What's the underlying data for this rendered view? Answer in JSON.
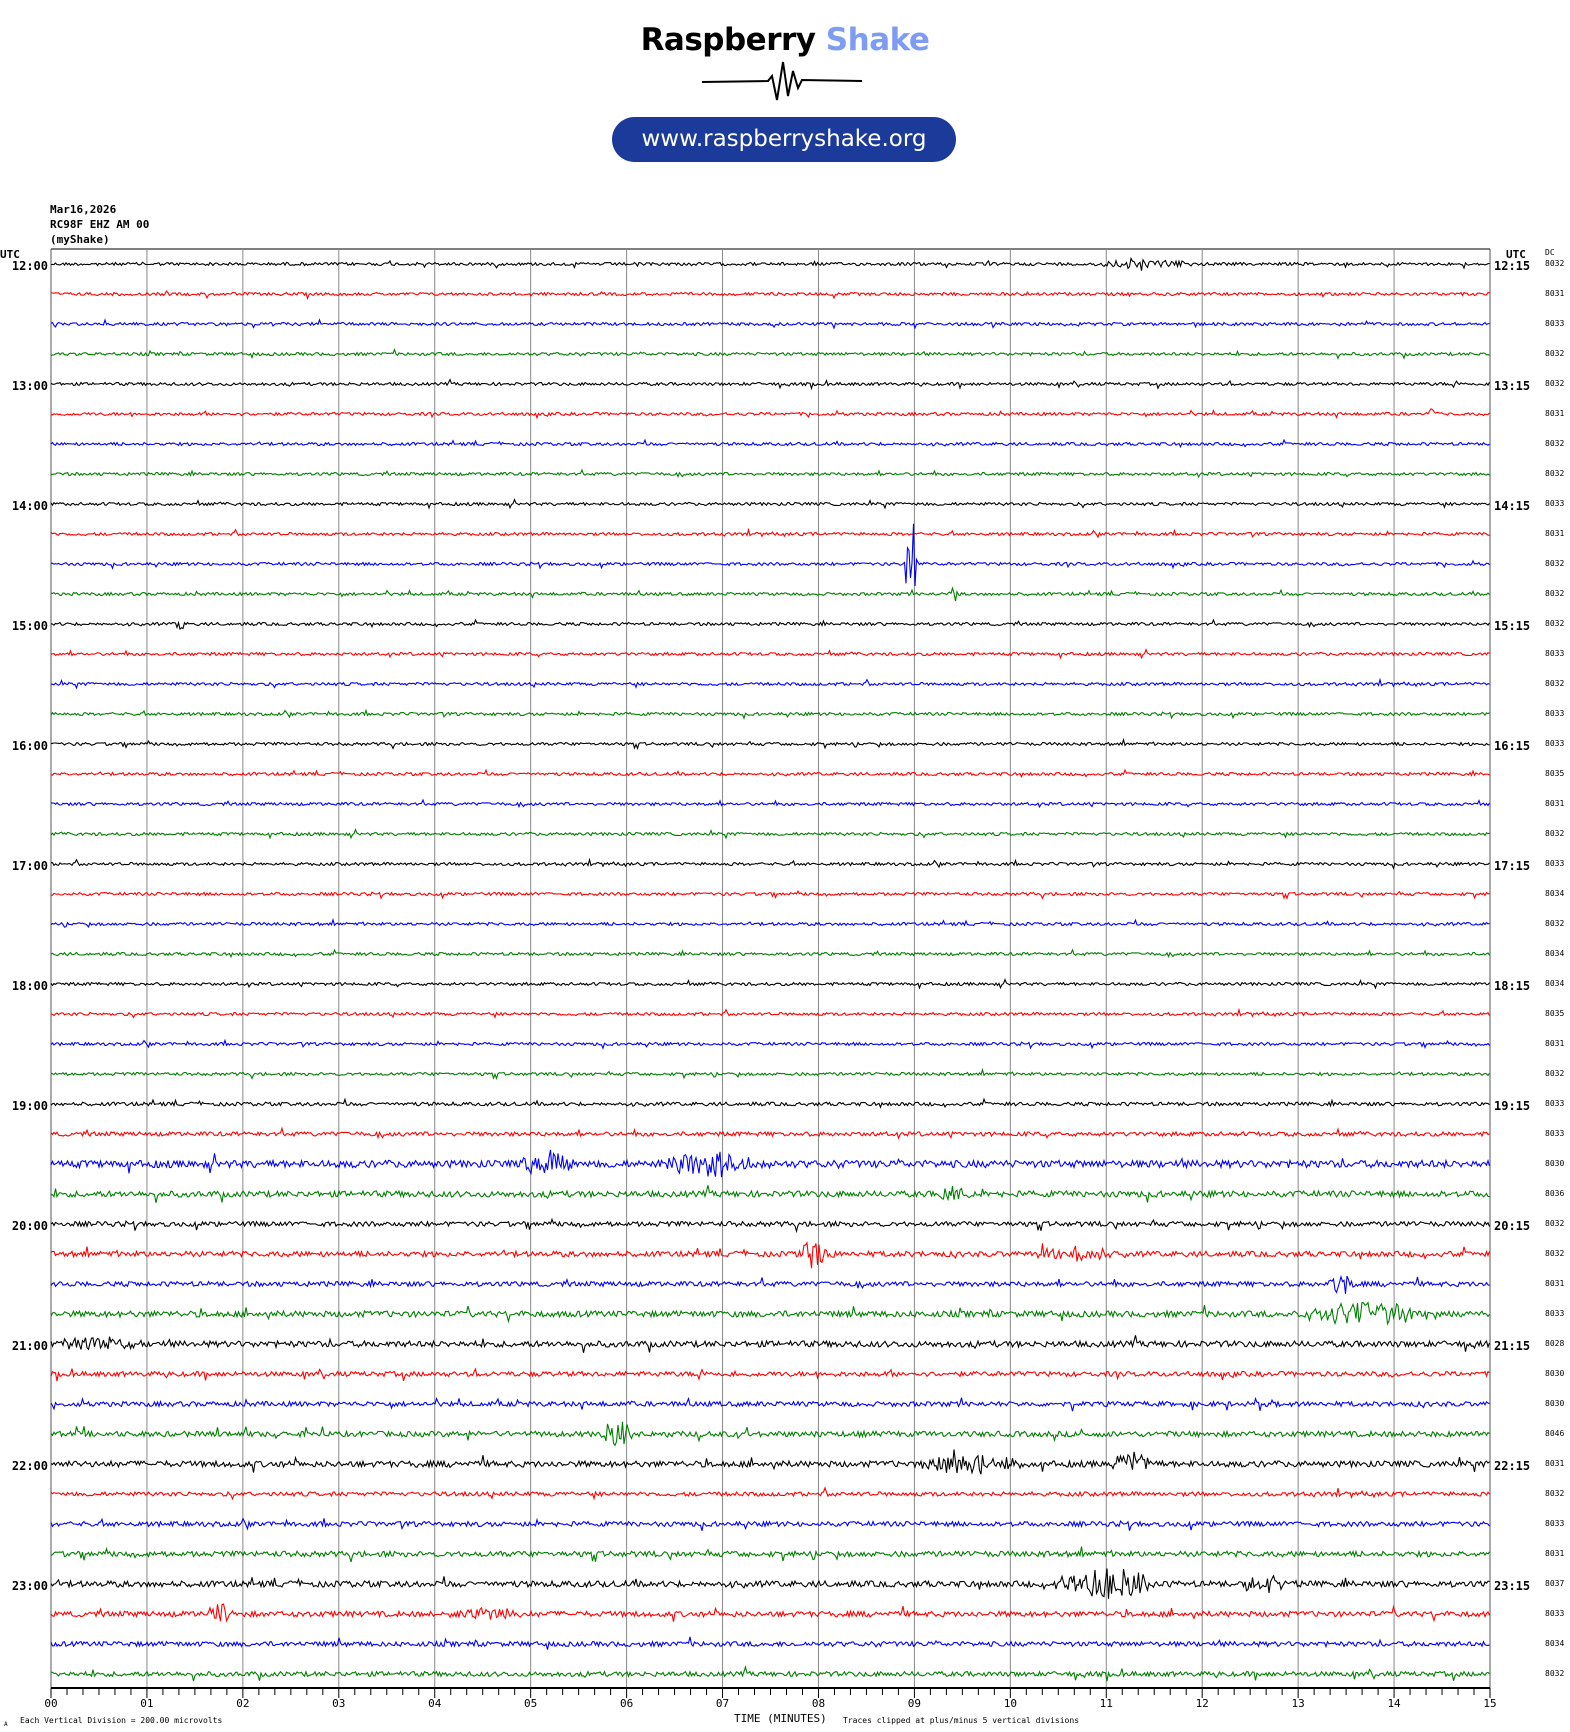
{
  "logo": {
    "word1": "Raspberry",
    "word2": "Shake",
    "url": "www.raspberryshake.org",
    "colors": {
      "word2": "#7e9cf2",
      "pill": "#1b3a9a"
    }
  },
  "header": {
    "date": "Mar16,2026",
    "station": "RC98F EHZ AM 00",
    "network": "(myShake)"
  },
  "left_utc_label": "UTC",
  "right_utc_label": "UTC",
  "dc_label": "DC",
  "footer": {
    "scale": "Each Vertical Division =  200.00 microvolts",
    "xlabel": "TIME (MINUTES)",
    "clip_note": "Traces clipped at plus/minus 5 vertical divisions",
    "corner_mark": "A"
  },
  "chart_data": {
    "type": "line",
    "subtype": "helicorder",
    "xlabel": "TIME (MINUTES)",
    "xlim": [
      0,
      15
    ],
    "x_ticks": [
      "00",
      "01",
      "02",
      "03",
      "04",
      "05",
      "06",
      "07",
      "08",
      "09",
      "10",
      "11",
      "12",
      "13",
      "14",
      "15"
    ],
    "left_time_labels": [
      "12:00",
      "13:00",
      "14:00",
      "15:00",
      "16:00",
      "17:00",
      "18:00",
      "19:00",
      "20:00",
      "21:00",
      "22:00",
      "23:00"
    ],
    "right_time_labels": [
      "12:15",
      "13:15",
      "14:15",
      "15:15",
      "16:15",
      "17:15",
      "18:15",
      "19:15",
      "20:15",
      "21:15",
      "22:15",
      "23:15"
    ],
    "trace_colors": [
      "#000000",
      "#ff0000",
      "#0000ff",
      "#008000"
    ],
    "grid": true,
    "dc_values": [
      "8032",
      "8031",
      "8033",
      "8032",
      "8032",
      "8031",
      "8032",
      "8032",
      "8033",
      "8031",
      "8032",
      "8032",
      "8032",
      "8033",
      "8032",
      "8033",
      "8033",
      "8035",
      "8031",
      "8032",
      "8033",
      "8034",
      "8032",
      "8034",
      "8034",
      "8035",
      "8031",
      "8032",
      "8033",
      "8033",
      "8030",
      "8036",
      "8032",
      "8032",
      "8031",
      "8033",
      "8028",
      "8030",
      "8030",
      "8046",
      "8031",
      "8032",
      "8033",
      "8031",
      "8037",
      "8033",
      "8034",
      "8032"
    ],
    "noise_divisions": [
      0.05,
      0.05,
      0.05,
      0.05,
      0.05,
      0.05,
      0.05,
      0.05,
      0.05,
      0.05,
      0.05,
      0.05,
      0.05,
      0.05,
      0.05,
      0.05,
      0.05,
      0.05,
      0.05,
      0.05,
      0.05,
      0.05,
      0.05,
      0.05,
      0.05,
      0.05,
      0.05,
      0.05,
      0.06,
      0.07,
      0.12,
      0.1,
      0.08,
      0.09,
      0.08,
      0.1,
      0.1,
      0.08,
      0.08,
      0.09,
      0.1,
      0.07,
      0.08,
      0.09,
      0.1,
      0.09,
      0.08,
      0.08
    ],
    "events": [
      {
        "trace": 0,
        "start_min": 10.8,
        "end_min": 12.0,
        "amp_div": 0.15
      },
      {
        "trace": 5,
        "start_min": 14.35,
        "end_min": 14.45,
        "amp_div": 0.35
      },
      {
        "trace": 10,
        "start_min": 8.88,
        "end_min": 9.05,
        "amp_div": 2.4
      },
      {
        "trace": 11,
        "start_min": 9.35,
        "end_min": 9.45,
        "amp_div": 0.3
      },
      {
        "trace": 12,
        "start_min": 1.3,
        "end_min": 1.4,
        "amp_div": 0.3
      },
      {
        "trace": 30,
        "start_min": 4.9,
        "end_min": 5.5,
        "amp_div": 0.45
      },
      {
        "trace": 30,
        "start_min": 6.3,
        "end_min": 7.5,
        "amp_div": 0.4
      },
      {
        "trace": 31,
        "start_min": 9.2,
        "end_min": 9.6,
        "amp_div": 0.25
      },
      {
        "trace": 33,
        "start_min": 7.75,
        "end_min": 8.2,
        "amp_div": 0.45
      },
      {
        "trace": 33,
        "start_min": 10.2,
        "end_min": 11.1,
        "amp_div": 0.25
      },
      {
        "trace": 34,
        "start_min": 13.3,
        "end_min": 13.6,
        "amp_div": 0.35
      },
      {
        "trace": 35,
        "start_min": 12.9,
        "end_min": 14.5,
        "amp_div": 0.35
      },
      {
        "trace": 36,
        "start_min": 0.0,
        "end_min": 1.0,
        "amp_div": 0.25
      },
      {
        "trace": 39,
        "start_min": 5.7,
        "end_min": 6.1,
        "amp_div": 0.4
      },
      {
        "trace": 40,
        "start_min": 9.0,
        "end_min": 10.2,
        "amp_div": 0.3
      },
      {
        "trace": 40,
        "start_min": 11.0,
        "end_min": 11.5,
        "amp_div": 0.4
      },
      {
        "trace": 44,
        "start_min": 10.4,
        "end_min": 11.6,
        "amp_div": 0.5
      },
      {
        "trace": 44,
        "start_min": 12.4,
        "end_min": 13.0,
        "amp_div": 0.25
      },
      {
        "trace": 45,
        "start_min": 1.6,
        "end_min": 1.9,
        "amp_div": 0.35
      },
      {
        "trace": 45,
        "start_min": 4.0,
        "end_min": 5.0,
        "amp_div": 0.2
      }
    ]
  }
}
